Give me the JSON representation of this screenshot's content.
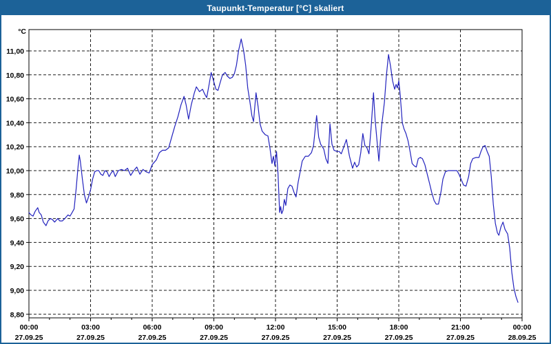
{
  "window": {
    "title": "Taupunkt-Temperatur [°C] skaliert",
    "titlebar_color": "#1c6298",
    "frame_color": "#1c6298"
  },
  "chart_data": {
    "type": "line",
    "title": "Taupunkt-Temperatur [°C] skaliert",
    "xlabel": "",
    "ylabel": "°C",
    "ylim": [
      8.77,
      11.18
    ],
    "xlim_hours": [
      0,
      24
    ],
    "grid": "dashed",
    "legend": "none",
    "plot_bg": "#ffffff",
    "grid_color": "#000000",
    "text_color": "#000000",
    "y_axis": {
      "unit": "°C",
      "ticks": [
        {
          "label": "11,00",
          "value": 11.0
        },
        {
          "label": "10,80",
          "value": 10.8
        },
        {
          "label": "10,60",
          "value": 10.6
        },
        {
          "label": "10,40",
          "value": 10.4
        },
        {
          "label": "10,20",
          "value": 10.2
        },
        {
          "label": "10,00",
          "value": 10.0
        },
        {
          "label": "9,80",
          "value": 9.8
        },
        {
          "label": "9,60",
          "value": 9.6
        },
        {
          "label": "9,40",
          "value": 9.4
        },
        {
          "label": "9,20",
          "value": 9.2
        },
        {
          "label": "9,00",
          "value": 9.0
        },
        {
          "label": "8,80",
          "value": 8.8
        }
      ]
    },
    "x_axis": {
      "minor_tick_hours": 1,
      "ticks": [
        {
          "hour": 0,
          "time": "00:00",
          "date": "27.09.25"
        },
        {
          "hour": 3,
          "time": "03:00",
          "date": "27.09.25"
        },
        {
          "hour": 6,
          "time": "06:00",
          "date": "27.09.25"
        },
        {
          "hour": 9,
          "time": "09:00",
          "date": "27.09.25"
        },
        {
          "hour": 12,
          "time": "12:00",
          "date": "27.09.25"
        },
        {
          "hour": 15,
          "time": "15:00",
          "date": "27.09.25"
        },
        {
          "hour": 18,
          "time": "18:00",
          "date": "27.09.25"
        },
        {
          "hour": 21,
          "time": "21:00",
          "date": "27.09.25"
        },
        {
          "hour": 24,
          "time": "00:00",
          "date": "28.09.25"
        }
      ]
    },
    "series": [
      {
        "name": "Taupunkt-Temperatur",
        "color": "#2121bd",
        "points": [
          [
            0.0,
            9.65
          ],
          [
            0.1,
            9.63
          ],
          [
            0.2,
            9.62
          ],
          [
            0.3,
            9.66
          ],
          [
            0.43,
            9.69
          ],
          [
            0.5,
            9.65
          ],
          [
            0.6,
            9.63
          ],
          [
            0.7,
            9.57
          ],
          [
            0.83,
            9.54
          ],
          [
            0.93,
            9.58
          ],
          [
            1.05,
            9.6
          ],
          [
            1.15,
            9.59
          ],
          [
            1.25,
            9.57
          ],
          [
            1.4,
            9.6
          ],
          [
            1.5,
            9.58
          ],
          [
            1.63,
            9.58
          ],
          [
            1.75,
            9.6
          ],
          [
            1.9,
            9.63
          ],
          [
            2.0,
            9.62
          ],
          [
            2.1,
            9.65
          ],
          [
            2.2,
            9.68
          ],
          [
            2.3,
            9.85
          ],
          [
            2.4,
            10.05
          ],
          [
            2.45,
            10.13
          ],
          [
            2.5,
            10.08
          ],
          [
            2.6,
            9.93
          ],
          [
            2.7,
            9.8
          ],
          [
            2.8,
            9.73
          ],
          [
            2.9,
            9.78
          ],
          [
            3.0,
            9.84
          ],
          [
            3.1,
            9.93
          ],
          [
            3.2,
            9.99
          ],
          [
            3.3,
            10.0
          ],
          [
            3.4,
            10.0
          ],
          [
            3.5,
            9.97
          ],
          [
            3.6,
            9.96
          ],
          [
            3.7,
            10.0
          ],
          [
            3.8,
            9.99
          ],
          [
            3.9,
            9.95
          ],
          [
            4.0,
            9.98
          ],
          [
            4.1,
            10.0
          ],
          [
            4.2,
            9.95
          ],
          [
            4.35,
            10.0
          ],
          [
            4.5,
            10.01
          ],
          [
            4.65,
            10.0
          ],
          [
            4.8,
            10.02
          ],
          [
            4.95,
            9.96
          ],
          [
            5.1,
            10.0
          ],
          [
            5.25,
            10.03
          ],
          [
            5.4,
            9.97
          ],
          [
            5.55,
            10.01
          ],
          [
            5.7,
            9.99
          ],
          [
            5.85,
            9.98
          ],
          [
            6.0,
            10.05
          ],
          [
            6.2,
            10.09
          ],
          [
            6.35,
            10.15
          ],
          [
            6.5,
            10.17
          ],
          [
            6.65,
            10.17
          ],
          [
            6.8,
            10.19
          ],
          [
            6.95,
            10.28
          ],
          [
            7.1,
            10.37
          ],
          [
            7.25,
            10.45
          ],
          [
            7.4,
            10.55
          ],
          [
            7.55,
            10.62
          ],
          [
            7.65,
            10.55
          ],
          [
            7.77,
            10.43
          ],
          [
            7.9,
            10.55
          ],
          [
            8.05,
            10.65
          ],
          [
            8.15,
            10.7
          ],
          [
            8.3,
            10.66
          ],
          [
            8.45,
            10.68
          ],
          [
            8.55,
            10.64
          ],
          [
            8.65,
            10.61
          ],
          [
            8.75,
            10.7
          ],
          [
            8.87,
            10.82
          ],
          [
            9.0,
            10.74
          ],
          [
            9.1,
            10.68
          ],
          [
            9.2,
            10.67
          ],
          [
            9.3,
            10.73
          ],
          [
            9.42,
            10.8
          ],
          [
            9.55,
            10.82
          ],
          [
            9.65,
            10.79
          ],
          [
            9.78,
            10.77
          ],
          [
            9.9,
            10.78
          ],
          [
            10.0,
            10.81
          ],
          [
            10.1,
            10.88
          ],
          [
            10.2,
            11.0
          ],
          [
            10.33,
            11.1
          ],
          [
            10.45,
            11.0
          ],
          [
            10.55,
            10.88
          ],
          [
            10.65,
            10.69
          ],
          [
            10.75,
            10.58
          ],
          [
            10.85,
            10.46
          ],
          [
            10.93,
            10.41
          ],
          [
            11.05,
            10.65
          ],
          [
            11.15,
            10.54
          ],
          [
            11.25,
            10.39
          ],
          [
            11.35,
            10.33
          ],
          [
            11.5,
            10.3
          ],
          [
            11.63,
            10.29
          ],
          [
            11.73,
            10.19
          ],
          [
            11.83,
            10.06
          ],
          [
            11.9,
            10.12
          ],
          [
            11.97,
            10.04
          ],
          [
            12.05,
            10.16
          ],
          [
            12.12,
            9.98
          ],
          [
            12.2,
            9.65
          ],
          [
            12.25,
            9.7
          ],
          [
            12.3,
            9.64
          ],
          [
            12.37,
            9.67
          ],
          [
            12.43,
            9.76
          ],
          [
            12.5,
            9.71
          ],
          [
            12.6,
            9.85
          ],
          [
            12.7,
            9.88
          ],
          [
            12.8,
            9.87
          ],
          [
            12.9,
            9.82
          ],
          [
            13.0,
            9.78
          ],
          [
            13.1,
            9.9
          ],
          [
            13.2,
            9.99
          ],
          [
            13.3,
            10.08
          ],
          [
            13.45,
            10.12
          ],
          [
            13.6,
            10.12
          ],
          [
            13.75,
            10.15
          ],
          [
            13.85,
            10.21
          ],
          [
            14.0,
            10.46
          ],
          [
            14.1,
            10.28
          ],
          [
            14.2,
            10.22
          ],
          [
            14.35,
            10.18
          ],
          [
            14.45,
            10.1
          ],
          [
            14.55,
            10.06
          ],
          [
            14.65,
            10.39
          ],
          [
            14.75,
            10.22
          ],
          [
            14.85,
            10.17
          ],
          [
            15.0,
            10.16
          ],
          [
            15.1,
            10.16
          ],
          [
            15.2,
            10.14
          ],
          [
            15.33,
            10.2
          ],
          [
            15.45,
            10.26
          ],
          [
            15.6,
            10.12
          ],
          [
            15.75,
            10.02
          ],
          [
            15.85,
            10.07
          ],
          [
            15.95,
            10.03
          ],
          [
            16.05,
            10.05
          ],
          [
            16.15,
            10.15
          ],
          [
            16.25,
            10.31
          ],
          [
            16.35,
            10.21
          ],
          [
            16.45,
            10.19
          ],
          [
            16.55,
            10.14
          ],
          [
            16.65,
            10.35
          ],
          [
            16.77,
            10.65
          ],
          [
            16.85,
            10.42
          ],
          [
            16.95,
            10.23
          ],
          [
            17.03,
            10.08
          ],
          [
            17.15,
            10.35
          ],
          [
            17.3,
            10.57
          ],
          [
            17.4,
            10.8
          ],
          [
            17.5,
            10.97
          ],
          [
            17.6,
            10.87
          ],
          [
            17.7,
            10.75
          ],
          [
            17.8,
            10.68
          ],
          [
            17.87,
            10.72
          ],
          [
            17.93,
            10.69
          ],
          [
            18.0,
            10.75
          ],
          [
            18.07,
            10.63
          ],
          [
            18.17,
            10.4
          ],
          [
            18.25,
            10.35
          ],
          [
            18.35,
            10.31
          ],
          [
            18.45,
            10.25
          ],
          [
            18.55,
            10.16
          ],
          [
            18.65,
            10.06
          ],
          [
            18.75,
            10.04
          ],
          [
            18.85,
            10.03
          ],
          [
            18.95,
            10.1
          ],
          [
            19.05,
            10.11
          ],
          [
            19.15,
            10.1
          ],
          [
            19.27,
            10.05
          ],
          [
            19.37,
            9.98
          ],
          [
            19.5,
            9.89
          ],
          [
            19.6,
            9.82
          ],
          [
            19.72,
            9.75
          ],
          [
            19.82,
            9.72
          ],
          [
            19.93,
            9.72
          ],
          [
            20.05,
            9.82
          ],
          [
            20.15,
            9.93
          ],
          [
            20.27,
            9.99
          ],
          [
            20.4,
            10.0
          ],
          [
            20.55,
            10.0
          ],
          [
            20.7,
            10.0
          ],
          [
            20.83,
            10.0
          ],
          [
            20.93,
            9.97
          ],
          [
            21.05,
            9.92
          ],
          [
            21.15,
            9.88
          ],
          [
            21.27,
            9.87
          ],
          [
            21.4,
            9.95
          ],
          [
            21.5,
            10.06
          ],
          [
            21.6,
            10.1
          ],
          [
            21.75,
            10.11
          ],
          [
            21.9,
            10.11
          ],
          [
            22.0,
            10.16
          ],
          [
            22.1,
            10.2
          ],
          [
            22.2,
            10.21
          ],
          [
            22.3,
            10.16
          ],
          [
            22.4,
            10.12
          ],
          [
            22.5,
            9.95
          ],
          [
            22.6,
            9.72
          ],
          [
            22.7,
            9.56
          ],
          [
            22.8,
            9.48
          ],
          [
            22.87,
            9.46
          ],
          [
            22.97,
            9.53
          ],
          [
            23.07,
            9.57
          ],
          [
            23.17,
            9.51
          ],
          [
            23.3,
            9.47
          ],
          [
            23.4,
            9.35
          ],
          [
            23.5,
            9.15
          ],
          [
            23.6,
            9.02
          ],
          [
            23.7,
            8.95
          ],
          [
            23.8,
            8.9
          ]
        ]
      }
    ]
  }
}
